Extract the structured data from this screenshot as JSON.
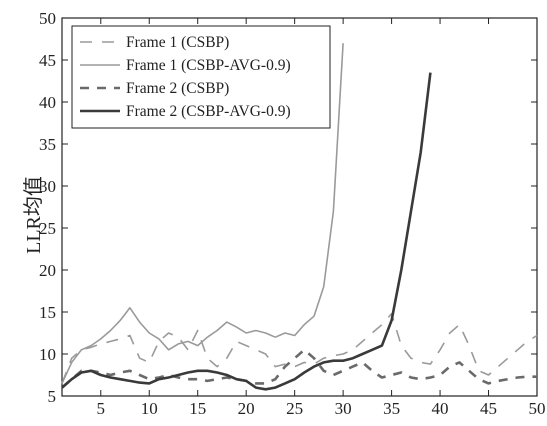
{
  "chart_data": {
    "type": "line",
    "ylabel": "LLR均值",
    "xlabel": "",
    "xlim": [
      1,
      50
    ],
    "ylim": [
      5,
      50
    ],
    "xticks": [
      5,
      10,
      15,
      20,
      25,
      30,
      35,
      40,
      45,
      50
    ],
    "yticks": [
      5,
      10,
      15,
      20,
      25,
      30,
      35,
      40,
      45,
      50
    ],
    "grid": false,
    "legend_position": "top-left",
    "series": [
      {
        "name": "Frame 1 (CSBP)",
        "style": "dashed",
        "weight": "thin",
        "color": "#9a9a9a",
        "x": [
          1,
          2,
          3,
          4,
          5,
          6,
          7,
          8,
          9,
          10,
          11,
          12,
          13,
          14,
          15,
          16,
          17,
          18,
          19,
          20,
          21,
          22,
          23,
          24,
          25,
          26,
          27,
          28,
          29,
          30,
          31,
          32,
          33,
          34,
          35,
          36,
          37,
          38,
          39,
          40,
          41,
          42,
          43,
          44,
          45,
          46,
          47,
          48,
          49,
          50
        ],
        "y": [
          6.5,
          9.5,
          10.5,
          10.8,
          11.2,
          11.5,
          11.8,
          12.2,
          9.5,
          9.0,
          11.5,
          12.5,
          12.0,
          10.5,
          12.8,
          9.5,
          8.5,
          9.5,
          11.5,
          11.0,
          10.5,
          10.0,
          8.5,
          8.8,
          8.5,
          9.0,
          8.8,
          9.5,
          9.8,
          10.0,
          10.5,
          11.5,
          12.5,
          13.5,
          14.8,
          11.0,
          9.5,
          9.0,
          8.8,
          10.5,
          12.5,
          13.5,
          11.0,
          8.0,
          7.5,
          8.5,
          9.5,
          10.5,
          11.5,
          12.2
        ]
      },
      {
        "name": "Frame 1 (CSBP-AVG-0.9)",
        "style": "solid",
        "weight": "thin",
        "color": "#9a9a9a",
        "x": [
          1,
          2,
          3,
          4,
          5,
          6,
          7,
          8,
          9,
          10,
          11,
          12,
          13,
          14,
          15,
          16,
          17,
          18,
          19,
          20,
          21,
          22,
          23,
          24,
          25,
          26,
          27,
          28,
          29,
          30
        ],
        "y": [
          6.5,
          9.0,
          10.5,
          11.0,
          11.8,
          12.8,
          14.0,
          15.5,
          13.8,
          12.5,
          11.8,
          10.5,
          11.2,
          11.5,
          11.0,
          12.0,
          12.8,
          13.8,
          13.2,
          12.5,
          12.8,
          12.5,
          12.0,
          12.5,
          12.2,
          13.5,
          14.5,
          18.0,
          27.0,
          47.0
        ]
      },
      {
        "name": "Frame 2 (CSBP)",
        "style": "dashed",
        "weight": "thick",
        "color": "#6a6a6a",
        "x": [
          1,
          2,
          3,
          4,
          5,
          6,
          7,
          8,
          9,
          10,
          11,
          12,
          13,
          14,
          15,
          16,
          17,
          18,
          19,
          20,
          21,
          22,
          23,
          24,
          25,
          26,
          27,
          28,
          29,
          30,
          31,
          32,
          33,
          34,
          35,
          36,
          37,
          38,
          39,
          40,
          41,
          42,
          43,
          44,
          45,
          46,
          47,
          48,
          49,
          50
        ],
        "y": [
          6.0,
          7.0,
          8.0,
          8.0,
          7.8,
          7.5,
          7.8,
          8.0,
          7.5,
          7.0,
          7.2,
          7.5,
          7.2,
          7.0,
          7.0,
          6.8,
          7.0,
          7.2,
          7.0,
          6.8,
          6.5,
          6.5,
          7.0,
          8.5,
          9.5,
          10.5,
          9.5,
          8.0,
          7.5,
          8.0,
          8.5,
          9.0,
          8.0,
          7.2,
          7.5,
          7.8,
          7.2,
          7.0,
          7.2,
          7.5,
          8.5,
          9.0,
          8.0,
          7.0,
          6.5,
          6.8,
          7.0,
          7.2,
          7.3,
          7.3
        ]
      },
      {
        "name": "Frame 2 (CSBP-AVG-0.9)",
        "style": "solid",
        "weight": "thick",
        "color": "#3a3a3a",
        "x": [
          1,
          2,
          3,
          4,
          5,
          6,
          7,
          8,
          9,
          10,
          11,
          12,
          13,
          14,
          15,
          16,
          17,
          18,
          19,
          20,
          21,
          22,
          23,
          24,
          25,
          26,
          27,
          28,
          29,
          30,
          31,
          32,
          33,
          34,
          35,
          36,
          37,
          38,
          39
        ],
        "y": [
          6.0,
          7.0,
          7.8,
          8.0,
          7.5,
          7.2,
          7.0,
          6.8,
          6.6,
          6.5,
          7.0,
          7.2,
          7.5,
          7.8,
          8.0,
          8.0,
          7.8,
          7.5,
          7.0,
          6.8,
          6.0,
          5.8,
          6.0,
          6.5,
          7.0,
          7.8,
          8.5,
          9.0,
          9.2,
          9.2,
          9.5,
          10.0,
          10.5,
          11.0,
          14.0,
          20.0,
          27.0,
          34.0,
          43.5
        ]
      }
    ]
  }
}
